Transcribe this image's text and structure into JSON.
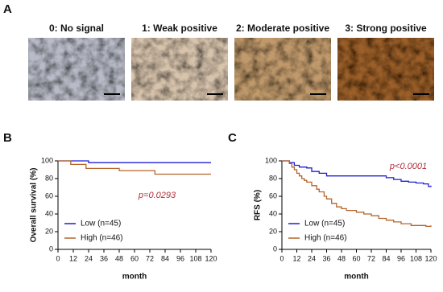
{
  "panels": [
    "A",
    "B",
    "C"
  ],
  "images": [
    {
      "label": "0: No signal"
    },
    {
      "label": "1: Weak positive"
    },
    {
      "label": "2: Moderate positive"
    },
    {
      "label": "3: Strong positive"
    }
  ],
  "chart_data": [
    {
      "type": "line",
      "step": true,
      "x_label": "month",
      "y_label": "Overall survival (%)",
      "xlim": [
        0,
        120
      ],
      "ylim": [
        0,
        100
      ],
      "xticks": [
        0,
        12,
        24,
        36,
        48,
        60,
        72,
        84,
        96,
        108,
        120
      ],
      "yticks": [
        0,
        20,
        40,
        60,
        80,
        100
      ],
      "annotation": "p=0.0293",
      "annotation_color": "#b0303a",
      "legend": "lower left",
      "series": [
        {
          "name": "Low (n=45)",
          "color": "#1f1fd0",
          "x": [
            0,
            24,
            120
          ],
          "values": [
            100,
            98,
            98
          ]
        },
        {
          "name": "High (n=46)",
          "color": "#b5642b",
          "x": [
            0,
            10,
            22,
            48,
            76,
            120
          ],
          "values": [
            100,
            96,
            91.5,
            89,
            85,
            85
          ]
        }
      ]
    },
    {
      "type": "line",
      "step": true,
      "x_label": "month",
      "y_label": "RFS (%)",
      "xlim": [
        0,
        120
      ],
      "ylim": [
        0,
        100
      ],
      "xticks": [
        0,
        12,
        24,
        36,
        48,
        60,
        72,
        84,
        96,
        108,
        120
      ],
      "yticks": [
        0,
        20,
        40,
        60,
        80,
        100
      ],
      "annotation": "p<0.0001",
      "annotation_color": "#b0303a",
      "legend": "lower left",
      "series": [
        {
          "name": "Low (n=45)",
          "color": "#1f1fd0",
          "x": [
            0,
            6,
            10,
            14,
            20,
            24,
            30,
            36,
            84,
            90,
            96,
            102,
            108,
            114,
            118,
            120
          ],
          "values": [
            100,
            98,
            95,
            93,
            92,
            88,
            86,
            83,
            81,
            79,
            77,
            76,
            75,
            74,
            71,
            72
          ]
        },
        {
          "name": "High (n=46)",
          "color": "#b5642b",
          "x": [
            0,
            6,
            8,
            10,
            12,
            14,
            16,
            18,
            20,
            24,
            28,
            30,
            34,
            36,
            40,
            44,
            48,
            52,
            60,
            66,
            72,
            78,
            84,
            90,
            96,
            104,
            116,
            120
          ],
          "values": [
            100,
            97,
            93,
            90,
            86,
            83,
            80,
            78,
            76,
            72,
            68,
            65,
            60,
            57,
            52,
            48,
            46,
            44,
            42,
            40,
            38,
            35,
            33,
            31,
            29,
            27,
            26,
            27
          ]
        }
      ]
    }
  ]
}
